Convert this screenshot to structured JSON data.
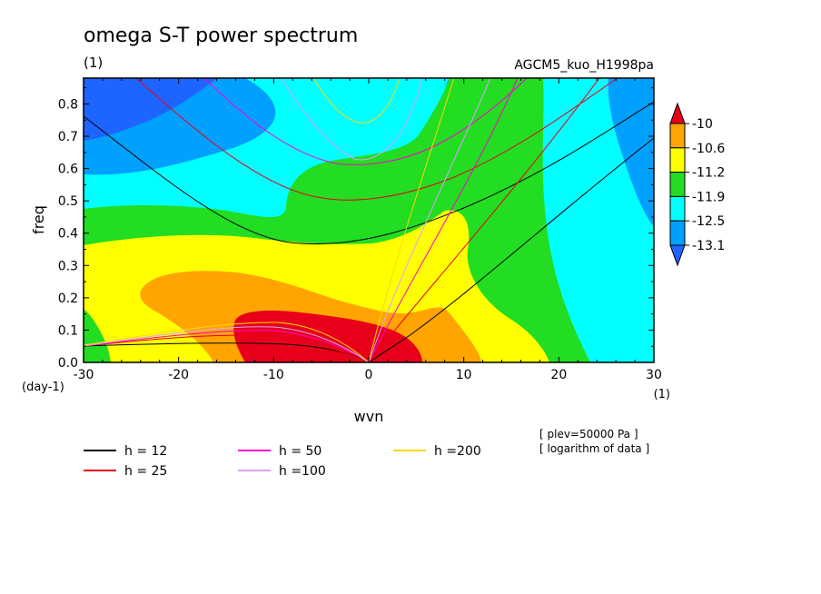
{
  "header": {
    "title": "omega S-T power spectrum",
    "unit_label": "(1)",
    "run_label": "AGCM5_kuo_H1998pa"
  },
  "chart_data": {
    "type": "heatmap",
    "title": "omega S-T power spectrum",
    "xlabel": "wvn",
    "ylabel": "freq",
    "x_unit": "(1)",
    "y_unit": "(day-1)",
    "xlim": [
      -30,
      30
    ],
    "ylim": [
      0,
      0.88
    ],
    "x_ticks": [
      "-30",
      "-20",
      "-10",
      "0",
      "10",
      "20",
      "30"
    ],
    "y_ticks": [
      "0.0",
      "0.1",
      "0.2",
      "0.3",
      "0.4",
      "0.5",
      "0.6",
      "0.7",
      "0.8"
    ],
    "colorbar": {
      "labels": [
        "-10",
        "-10.6",
        "-11.2",
        "-11.9",
        "-12.5",
        "-13.1"
      ],
      "levels": [
        -10,
        -10.6,
        -11.2,
        -11.9,
        -12.5,
        -13.1
      ],
      "colors": [
        "#e8001a",
        "#ffa400",
        "#ffff00",
        "#22dd22",
        "#00ffff",
        "#00a0ff",
        "#1e64ff"
      ]
    },
    "dispersion_curves": [
      {
        "name": "h = 12",
        "h": 12,
        "color": "#000000"
      },
      {
        "name": "h = 25",
        "h": 25,
        "color": "#e8001a"
      },
      {
        "name": "h = 50",
        "h": 50,
        "color": "#ff00cc"
      },
      {
        "name": "h =100",
        "h": 100,
        "color": "#dda0ff"
      },
      {
        "name": "h =200",
        "h": 200,
        "color": "#ffd800"
      }
    ],
    "annotations": [
      "[ plev=50000 Pa ]",
      "[ logarithm of data ]"
    ]
  }
}
